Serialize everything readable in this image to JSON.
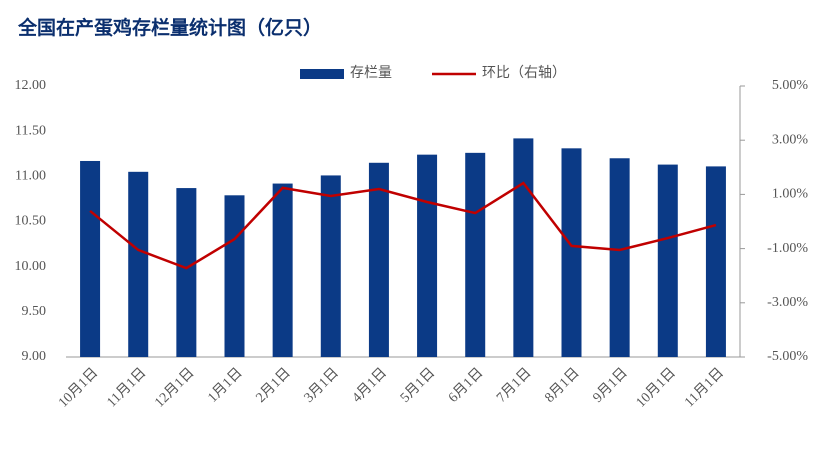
{
  "chart_data": {
    "type": "bar_line",
    "title": "全国在产蛋鸡存栏量统计图（亿只）",
    "categories": [
      "10月1日",
      "11月1日",
      "12月1日",
      "1月1日",
      "2月1日",
      "3月1日",
      "4月1日",
      "5月1日",
      "6月1日",
      "7月1日",
      "8月1日",
      "9月1日",
      "10月1日",
      "11月1日"
    ],
    "series": [
      {
        "name": "存栏量",
        "type": "bar",
        "color": "#0b3a86",
        "values": [
          11.17,
          11.05,
          10.87,
          10.79,
          10.92,
          11.01,
          11.15,
          11.24,
          11.26,
          11.42,
          11.31,
          11.2,
          11.13,
          11.11
        ]
      },
      {
        "name": "环比（右轴）",
        "type": "line",
        "axis": "y2",
        "color": "#c00000",
        "values": [
          0.39,
          -1.05,
          -1.72,
          -0.65,
          1.24,
          0.94,
          1.2,
          0.72,
          0.31,
          1.42,
          -0.9,
          -1.05,
          -0.61,
          -0.13
        ]
      }
    ],
    "ylim": [
      9,
      12
    ],
    "yticks": [
      {
        "value": 9,
        "label": "9.00"
      },
      {
        "value": 9.5,
        "label": "9.50"
      },
      {
        "value": 10,
        "label": "10.00"
      },
      {
        "value": 10.5,
        "label": "10.50"
      },
      {
        "value": 11,
        "label": "11.00"
      },
      {
        "value": 11.5,
        "label": "11.50"
      },
      {
        "value": 12,
        "label": "12.00"
      }
    ],
    "y2lim": [
      -5,
      5
    ],
    "y2ticks": [
      {
        "value": -5,
        "label": "-5.00%"
      },
      {
        "value": -3,
        "label": "-3.00%"
      },
      {
        "value": -1,
        "label": "-1.00%"
      },
      {
        "value": 1,
        "label": "1.00%"
      },
      {
        "value": 3,
        "label": "3.00%"
      },
      {
        "value": 5,
        "label": "5.00%"
      }
    ],
    "legend": "top"
  }
}
